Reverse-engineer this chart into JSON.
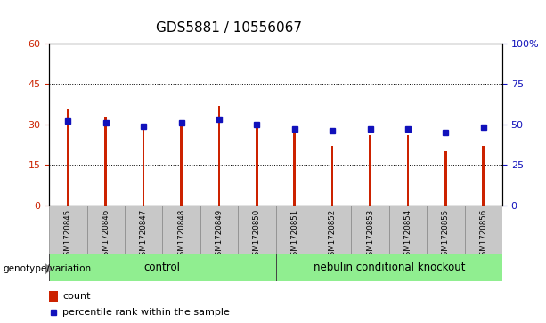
{
  "title": "GDS5881 / 10556067",
  "samples": [
    "GSM1720845",
    "GSM1720846",
    "GSM1720847",
    "GSM1720848",
    "GSM1720849",
    "GSM1720850",
    "GSM1720851",
    "GSM1720852",
    "GSM1720853",
    "GSM1720854",
    "GSM1720855",
    "GSM1720856"
  ],
  "counts": [
    36,
    33,
    29,
    30,
    37,
    30,
    27,
    22,
    26,
    26,
    20,
    22
  ],
  "percentiles": [
    52,
    51,
    49,
    51,
    53,
    50,
    47,
    46,
    47,
    47,
    45,
    48
  ],
  "ylim_left": [
    0,
    60
  ],
  "ylim_right": [
    0,
    100
  ],
  "yticks_left": [
    0,
    15,
    30,
    45,
    60
  ],
  "yticks_right": [
    0,
    25,
    50,
    75,
    100
  ],
  "yticklabels_right": [
    "0",
    "25",
    "50",
    "75",
    "100%"
  ],
  "bar_color": "#cc2200",
  "marker_color": "#1111bb",
  "control_label": "control",
  "ko_label": "nebulin conditional knockout",
  "control_indices": [
    0,
    1,
    2,
    3,
    4,
    5
  ],
  "ko_indices": [
    6,
    7,
    8,
    9,
    10,
    11
  ],
  "genotype_label": "genotype/variation",
  "legend_count": "count",
  "legend_percentile": "percentile rank within the sample",
  "control_bg": "#90ee90",
  "ko_bg": "#90ee90",
  "group_bg": "#c8c8c8",
  "title_fontsize": 11,
  "tick_fontsize": 8,
  "bar_width": 0.06
}
